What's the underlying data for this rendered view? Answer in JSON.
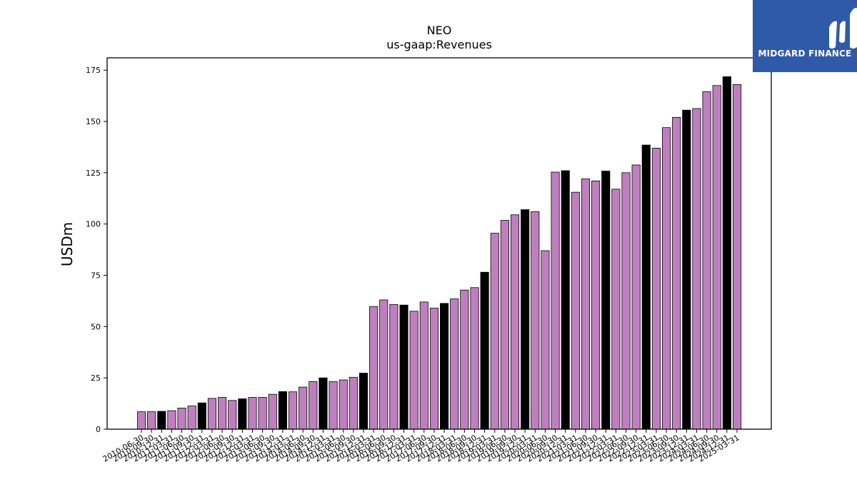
{
  "chart_data": {
    "type": "bar",
    "title": "NEO",
    "subtitle": "us-gaap:Revenues",
    "xlabel": "",
    "ylabel": "USDm",
    "ylim": [
      0,
      181
    ],
    "yticks": [
      0,
      25,
      50,
      75,
      100,
      125,
      150,
      175
    ],
    "colors": {
      "default": "#bf7fbf",
      "highlight": "#000000"
    },
    "categories": [
      "2010-06-30",
      "2010-09-30",
      "2010-12-31",
      "2011-03-31",
      "2011-06-30",
      "2011-09-30",
      "2011-12-31",
      "2012-03-31",
      "2012-06-30",
      "2012-09-30",
      "2012-12-31",
      "2013-03-31",
      "2013-06-30",
      "2013-09-30",
      "2013-12-31",
      "2014-03-31",
      "2014-06-30",
      "2014-09-30",
      "2014-12-31",
      "2015-03-31",
      "2015-06-30",
      "2015-09-30",
      "2015-12-31",
      "2016-03-31",
      "2016-06-30",
      "2016-09-30",
      "2016-12-31",
      "2017-03-31",
      "2017-06-30",
      "2017-09-30",
      "2017-12-31",
      "2018-03-31",
      "2018-06-30",
      "2018-09-30",
      "2018-12-31",
      "2019-03-31",
      "2019-06-30",
      "2019-09-30",
      "2019-12-31",
      "2020-03-31",
      "2020-06-30",
      "2020-09-30",
      "2020-12-31",
      "2021-03-31",
      "2021-06-30",
      "2021-09-30",
      "2021-12-31",
      "2022-03-31",
      "2022-06-30",
      "2022-09-30",
      "2022-12-31",
      "2023-03-31",
      "2023-06-30",
      "2023-09-30",
      "2023-12-31",
      "2024-03-31",
      "2024-06-30",
      "2024-09-30",
      "2024-12-31",
      "2025-03-31"
    ],
    "values": [
      8.5,
      8.5,
      8.7,
      9.0,
      10.3,
      11.3,
      12.8,
      15.0,
      15.5,
      14.0,
      14.8,
      15.5,
      15.5,
      17.0,
      18.3,
      18.2,
      20.5,
      23.2,
      25.0,
      23.2,
      24.0,
      25.3,
      27.3,
      59.8,
      63.0,
      60.8,
      60.5,
      57.5,
      62.0,
      59.0,
      61.3,
      63.5,
      67.8,
      69.0,
      76.5,
      95.5,
      101.8,
      104.5,
      107.0,
      106.0,
      87.0,
      125.3,
      126.0,
      115.5,
      122.0,
      121.0,
      125.8,
      117.0,
      125.0,
      128.8,
      138.5,
      137.0,
      147.0,
      152.0,
      155.5,
      156.3,
      164.5,
      167.5,
      171.8,
      168.0
    ],
    "highlight": [
      false,
      false,
      true,
      false,
      false,
      false,
      true,
      false,
      false,
      false,
      true,
      false,
      false,
      false,
      true,
      false,
      false,
      false,
      true,
      false,
      false,
      false,
      true,
      false,
      false,
      false,
      true,
      false,
      false,
      false,
      true,
      false,
      false,
      false,
      true,
      false,
      false,
      false,
      true,
      false,
      false,
      false,
      true,
      false,
      false,
      false,
      true,
      false,
      false,
      false,
      true,
      false,
      false,
      false,
      true,
      false,
      false,
      false,
      true,
      false
    ]
  },
  "logo": {
    "brand_text": "MIDGARD FINANCE",
    "icon": "midgard-logo-icon"
  }
}
